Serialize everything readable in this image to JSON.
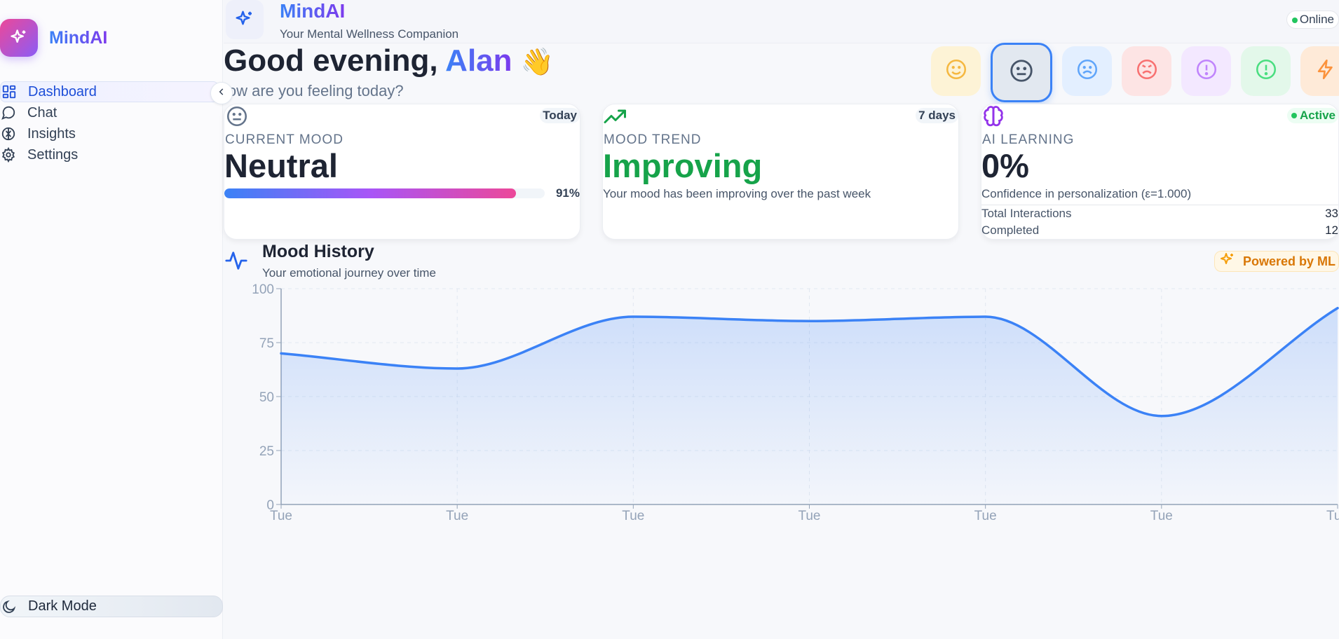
{
  "colors": {
    "accent_blue": "#3b82f6",
    "accent_purple": "#7c3aed",
    "positive_green": "#16a34a",
    "online_green": "#22c55e"
  },
  "sidebar": {
    "brand": "MindAI",
    "logo_icon": "sparkle-icon",
    "items": [
      {
        "label": "Dashboard",
        "icon": "grid-icon",
        "active": true
      },
      {
        "label": "Chat",
        "icon": "chat-bubble-icon"
      },
      {
        "label": "Insights",
        "icon": "brain-icon"
      },
      {
        "label": "Settings",
        "icon": "gear-icon"
      }
    ],
    "dark_mode_label": "Dark Mode"
  },
  "header": {
    "title": "MindAI",
    "subtitle": "Your Mental Wellness Companion",
    "status": "Online"
  },
  "greeting": {
    "prefix": "Good evening, ",
    "name": "Alan",
    "emoji": "👋",
    "question": "How are you feeling today?"
  },
  "mood_options": [
    {
      "icon": "happy-face-icon",
      "color": "#f5b841",
      "bg": "#fdf3d6"
    },
    {
      "icon": "neutral-face-icon",
      "color": "#475569",
      "bg": "#e2e8f0",
      "selected": true
    },
    {
      "icon": "sad-face-icon",
      "color": "#60a5fa",
      "bg": "#e3efff"
    },
    {
      "icon": "angry-face-icon",
      "color": "#f87171",
      "bg": "#fde4e4"
    },
    {
      "icon": "alert-purple-icon",
      "color": "#c084fc",
      "bg": "#f3e8ff"
    },
    {
      "icon": "alert-green-icon",
      "color": "#4ade80",
      "bg": "#e3f8ea"
    },
    {
      "icon": "lightning-icon",
      "color": "#fb923c",
      "bg": "#feead8"
    }
  ],
  "cards": {
    "current_mood": {
      "badge": "Today",
      "caption": "CURRENT MOOD",
      "value": "Neutral",
      "progress_pct": 91,
      "progress_label": "91%"
    },
    "mood_trend": {
      "badge": "7 days",
      "caption": "MOOD TREND",
      "value": "Improving",
      "description": "Your mood has been improving over the past week"
    },
    "ai_learning": {
      "badge": "Active",
      "caption": "AI LEARNING",
      "value": "0%",
      "description": "Confidence in personalization (ε=1.000)",
      "stats": [
        {
          "label": "Total Interactions",
          "value": "33"
        },
        {
          "label": "Completed",
          "value": "12"
        }
      ]
    }
  },
  "mood_history": {
    "title": "Mood History",
    "subtitle": "Your emotional journey over time",
    "badge": "Powered by ML"
  },
  "chart_data": {
    "type": "area",
    "x": [
      "Tue",
      "Tue",
      "Tue",
      "Tue",
      "Tue",
      "Tue",
      "Tue"
    ],
    "y": [
      70,
      63,
      87,
      85,
      87,
      41,
      91
    ],
    "yticks": [
      0,
      25,
      50,
      75,
      100
    ],
    "ylim": [
      0,
      100
    ],
    "grid": true,
    "line_color": "#3b82f6",
    "title": "",
    "xlabel": "",
    "ylabel": ""
  }
}
